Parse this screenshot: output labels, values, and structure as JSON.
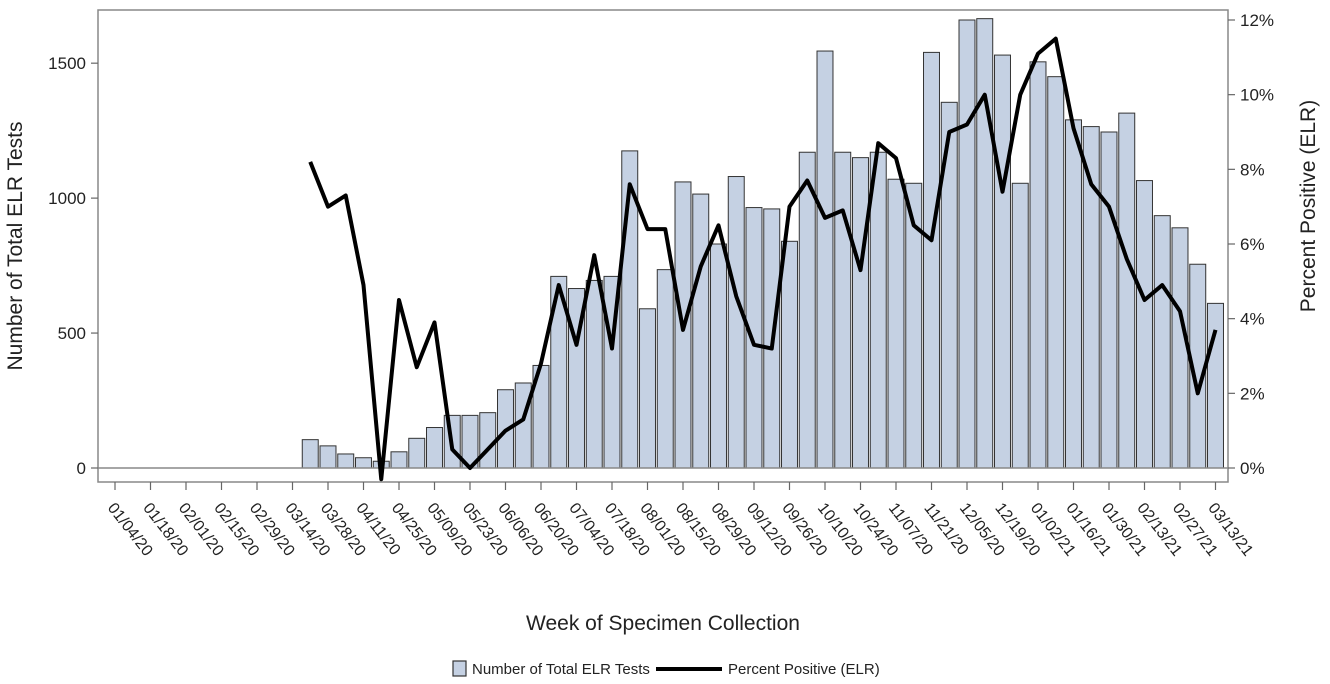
{
  "chart_data": {
    "type": "bar",
    "xlabel": "Week of Specimen Collection",
    "ylabel": "Number of Total ELR Tests",
    "y2label": "Percent Positive (ELR)",
    "ylim": [
      0,
      1660
    ],
    "y2lim": [
      0,
      12
    ],
    "yticks": [
      0,
      500,
      1000,
      1500
    ],
    "y2ticks": [
      "0%",
      "2%",
      "4%",
      "6%",
      "8%",
      "10%",
      "12%"
    ],
    "x_tick_labels": [
      "01/04/20",
      "01/18/20",
      "02/01/20",
      "02/15/20",
      "02/29/20",
      "03/14/20",
      "03/28/20",
      "04/11/20",
      "04/25/20",
      "05/09/20",
      "05/23/20",
      "06/06/20",
      "06/20/20",
      "07/04/20",
      "07/18/20",
      "08/01/20",
      "08/15/20",
      "08/29/20",
      "09/12/20",
      "09/26/20",
      "10/10/20",
      "10/24/20",
      "11/07/20",
      "11/21/20",
      "12/05/20",
      "12/19/20",
      "01/02/21",
      "01/16/21",
      "01/30/21",
      "02/13/21",
      "02/27/21",
      "03/13/21"
    ],
    "legend": {
      "placement": "bottom-center"
    },
    "series": [
      {
        "name": "Number of Total ELR Tests",
        "kind": "bar",
        "color": "#c5d1e3",
        "values": [
          0,
          0,
          0,
          0,
          0,
          0,
          0,
          0,
          0,
          0,
          0,
          105,
          82,
          52,
          38,
          25,
          60,
          110,
          150,
          195,
          195,
          205,
          290,
          315,
          380,
          710,
          665,
          695,
          710,
          1175,
          590,
          735,
          1060,
          1015,
          830,
          1080,
          965,
          960,
          840,
          1170,
          1545,
          1170,
          1150,
          1170,
          1070,
          1055,
          1540,
          1355,
          1660,
          1665,
          1530,
          1055,
          1505,
          1450,
          1290,
          1265,
          1245,
          1315,
          1065,
          935,
          890,
          755,
          610
        ]
      },
      {
        "name": "Percent Positive (ELR)",
        "kind": "line",
        "color": "#000000",
        "values": [
          null,
          null,
          null,
          null,
          null,
          null,
          null,
          null,
          null,
          null,
          null,
          8.2,
          7.0,
          7.3,
          4.9,
          -0.3,
          4.5,
          2.7,
          3.9,
          0.5,
          0.0,
          0.5,
          1.0,
          1.3,
          2.8,
          4.9,
          3.3,
          5.7,
          3.2,
          7.6,
          6.4,
          6.4,
          3.7,
          5.4,
          6.5,
          4.6,
          3.3,
          3.2,
          7.0,
          7.7,
          6.7,
          6.9,
          5.3,
          8.7,
          8.3,
          6.5,
          6.1,
          9.0,
          9.2,
          10.0,
          7.4,
          10.0,
          11.1,
          11.5,
          9.1,
          7.6,
          7.0,
          5.6,
          4.5,
          4.9,
          4.2,
          2.0,
          3.7
        ]
      }
    ]
  }
}
